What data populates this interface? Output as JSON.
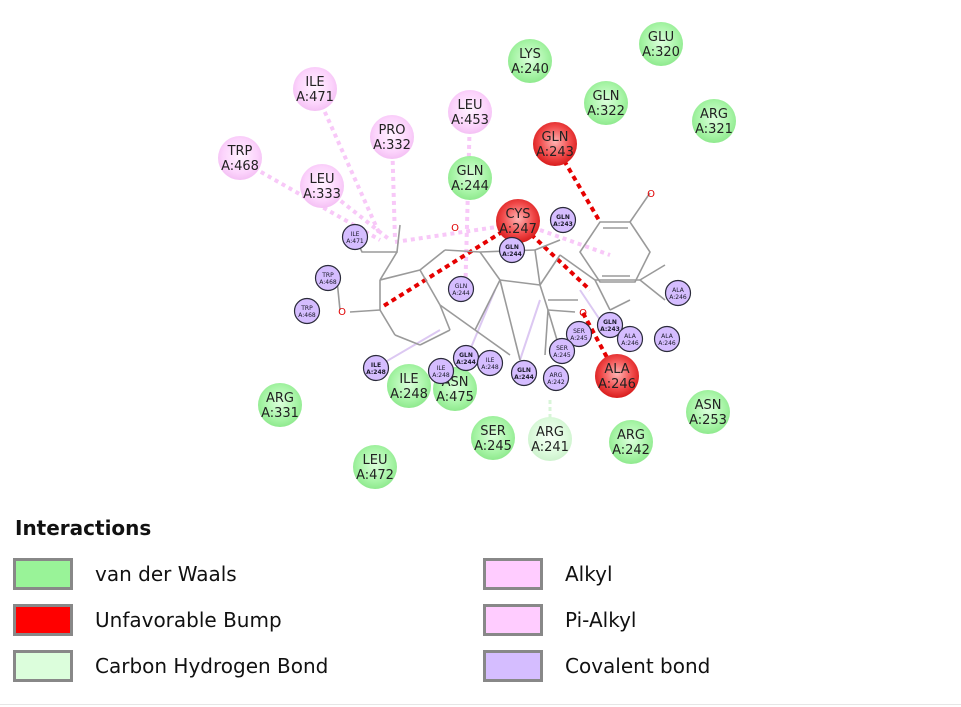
{
  "colors": {
    "van_der_waals": "#99f398",
    "unfavorable_bump": "#ff0000",
    "carbon_hydrogen_bond": "#dcfedc",
    "alkyl": "#ffccff",
    "pi_alkyl": "#ffccff",
    "covalent": "#d5bdff",
    "bond_line": "#9a9a9a"
  },
  "residues": [
    {
      "name": "ILE",
      "id": "A:471",
      "type": "alkyl"
    },
    {
      "name": "LYS",
      "id": "A:240",
      "type": "vdw"
    },
    {
      "name": "GLU",
      "id": "A:320",
      "type": "vdw"
    },
    {
      "name": "LEU",
      "id": "A:453",
      "type": "alkyl"
    },
    {
      "name": "GLN",
      "id": "A:322",
      "type": "vdw"
    },
    {
      "name": "PRO",
      "id": "A:332",
      "type": "alkyl"
    },
    {
      "name": "ARG",
      "id": "A:321",
      "type": "vdw"
    },
    {
      "name": "TRP",
      "id": "A:468",
      "type": "alkyl"
    },
    {
      "name": "GLN",
      "id": "A:243",
      "type": "bump"
    },
    {
      "name": "LEU",
      "id": "A:333",
      "type": "alkyl"
    },
    {
      "name": "GLN",
      "id": "A:244",
      "type": "vdw"
    },
    {
      "name": "CYS",
      "id": "A:247",
      "type": "bump"
    },
    {
      "name": "ARG",
      "id": "A:331",
      "type": "vdw"
    },
    {
      "name": "ILE",
      "id": "A:248",
      "type": "vdw"
    },
    {
      "name": "ASN",
      "id": "A:475",
      "type": "vdw"
    },
    {
      "name": "ALA",
      "id": "A:246",
      "type": "bump"
    },
    {
      "name": "ASN",
      "id": "A:253",
      "type": "vdw"
    },
    {
      "name": "SER",
      "id": "A:245",
      "type": "vdw"
    },
    {
      "name": "ARG",
      "id": "A:241",
      "type": "chbond"
    },
    {
      "name": "ARG",
      "id": "A:242",
      "type": "vdw"
    },
    {
      "name": "LEU",
      "id": "A:472",
      "type": "vdw"
    }
  ],
  "atom_tags": [
    {
      "name": "GLN",
      "id": "A:243",
      "bold": true
    },
    {
      "name": "ILE",
      "id": "A:471",
      "bold": false
    },
    {
      "name": "GLN",
      "id": "A:244",
      "bold": true
    },
    {
      "name": "TRP",
      "id": "A:468",
      "bold": false
    },
    {
      "name": "TRP",
      "id": "A:468",
      "bold": false
    },
    {
      "name": "GLN",
      "id": "A:244",
      "bold": false
    },
    {
      "name": "ALA",
      "id": "A:246",
      "bold": false
    },
    {
      "name": "SER",
      "id": "A:245",
      "bold": false
    },
    {
      "name": "GLN",
      "id": "A:243",
      "bold": true
    },
    {
      "name": "ALA",
      "id": "A:246",
      "bold": false
    },
    {
      "name": "ALA",
      "id": "A:246",
      "bold": false
    },
    {
      "name": "SER",
      "id": "A:245",
      "bold": false
    },
    {
      "name": "GLN",
      "id": "A:244",
      "bold": true
    },
    {
      "name": "ILE",
      "id": "A:248",
      "bold": false
    },
    {
      "name": "GLN",
      "id": "A:244",
      "bold": true
    },
    {
      "name": "ARG",
      "id": "A:242",
      "bold": false
    },
    {
      "name": "ILE",
      "id": "A:248",
      "bold": true
    },
    {
      "name": "ILE",
      "id": "A:248",
      "bold": false
    }
  ],
  "atom_labels": [
    "O",
    "O",
    "O",
    "O"
  ],
  "legend": {
    "title": "Interactions",
    "items": [
      {
        "label": "van der Waals",
        "color": "#99f398"
      },
      {
        "label": "Unfavorable Bump",
        "color": "#ff0000"
      },
      {
        "label": "Carbon Hydrogen Bond",
        "color": "#dcfedc"
      },
      {
        "label": "Alkyl",
        "color": "#ffccff"
      },
      {
        "label": "Pi-Alkyl",
        "color": "#ffccff"
      },
      {
        "label": "Covalent bond",
        "color": "#d5bdff"
      }
    ]
  }
}
